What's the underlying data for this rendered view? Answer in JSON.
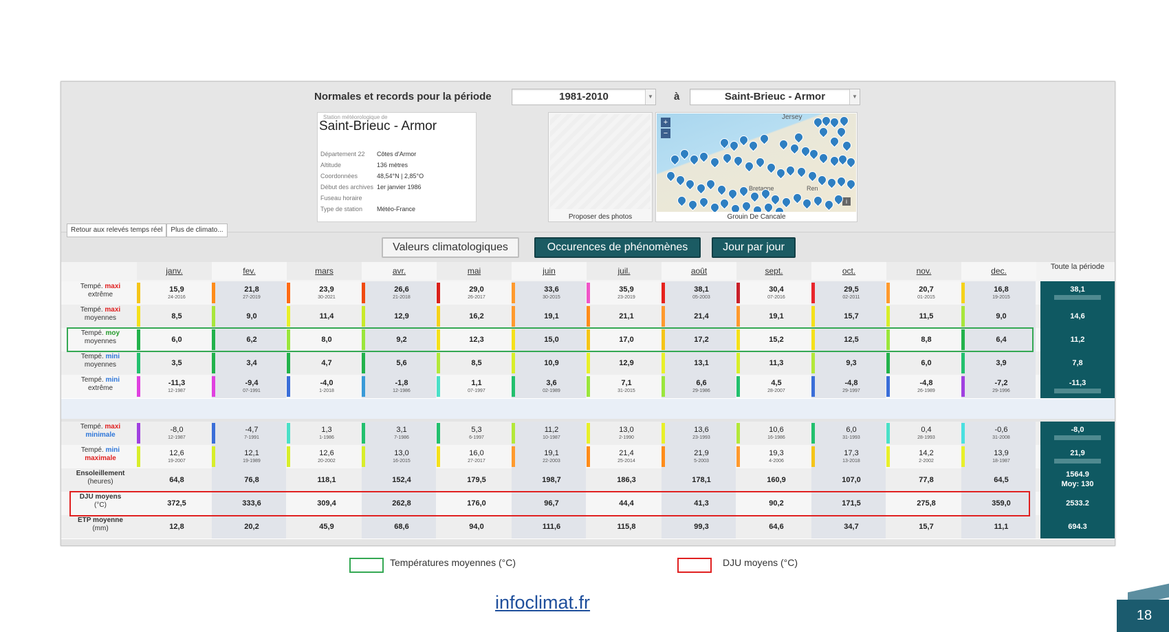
{
  "header": {
    "period_label": "Normales et records pour la période",
    "period_value": "1981-2010",
    "to_label": "à",
    "station_value": "Saint-Brieuc - Armor"
  },
  "station": {
    "small_label": "Station météorologique de",
    "name": "Saint-Brieuc - Armor",
    "fields": [
      {
        "k": "Département 22",
        "v": "Côtes d'Armor"
      },
      {
        "k": "Altitude",
        "v": "136 mètres"
      },
      {
        "k": "Coordonnées",
        "v": "48,54°N | 2,85°O"
      },
      {
        "k": "Début des archives",
        "v": "1er janvier 1986"
      },
      {
        "k": "Fuseau horaire",
        "v": ""
      },
      {
        "k": "Type de station",
        "v": "Météo-France"
      }
    ]
  },
  "photo": {
    "caption": "Proposer des photos"
  },
  "map": {
    "caption": "Grouin De Cancale",
    "zoom_in": "+",
    "zoom_out": "−",
    "label_jersey": "Jersey",
    "label_bretagne": "Bretagne",
    "label_ren": "Ren",
    "pin_label": "i"
  },
  "buttons": {
    "back": "Retour aux relevés temps réel",
    "more": "Plus de climato..."
  },
  "tabs": {
    "t1": "Valeurs climatologiques",
    "t2": "Occurences de phénomènes",
    "t3": "Jour par jour"
  },
  "table": {
    "months": [
      "janv.",
      "fev.",
      "mars",
      "avr.",
      "mai",
      "juin",
      "juil.",
      "août",
      "sept.",
      "oct.",
      "nov.",
      "dec."
    ],
    "total_header": "Toute la période",
    "rows": [
      {
        "label_a": "Tempé. ",
        "label_b": "maxi",
        "label_c": "extrême",
        "color_b": "red",
        "values": [
          "15,9",
          "21,8",
          "23,9",
          "26,6",
          "29,0",
          "33,6",
          "35,9",
          "38,1",
          "30,4",
          "29,5",
          "20,7",
          "16,8"
        ],
        "dates": [
          "24-2016",
          "27-2019",
          "30-2021",
          "21-2018",
          "26-2017",
          "30-2015",
          "23-2019",
          "05-2003",
          "07-2016",
          "02-2011",
          "01-2015",
          "19-2015"
        ],
        "bars": [
          "#f5c518",
          "#ff8c1a",
          "#ff6a13",
          "#f04a10",
          "#d9201a",
          "#ff9a2e",
          "#f055c8",
          "#e6221d",
          "#c8202a",
          "#e8252c",
          "#ff9a2e",
          "#f5d21a"
        ],
        "total": "38,1",
        "bold": true
      },
      {
        "label_a": "Tempé. ",
        "label_b": "maxi",
        "label_c": "moyennes",
        "color_b": "red",
        "values": [
          "8,5",
          "9,0",
          "11,4",
          "12,9",
          "16,2",
          "19,1",
          "21,1",
          "21,4",
          "19,1",
          "15,7",
          "11,5",
          "9,0"
        ],
        "dates": [],
        "bars": [
          "#f5e11a",
          "#a8e63c",
          "#e8f02a",
          "#c9ea2a",
          "#f5d21a",
          "#ff9a2e",
          "#ff8c1a",
          "#ff9a2e",
          "#ff9a2e",
          "#f5e11a",
          "#d8ee2a",
          "#a8e63c"
        ],
        "total": "14,6",
        "bold": true
      },
      {
        "label_a": "Tempé. ",
        "label_b": "moy",
        "label_c": "moyennes",
        "color_b": "green",
        "values": [
          "6,0",
          "6,2",
          "8,0",
          "9,2",
          "12,3",
          "15,0",
          "17,0",
          "17,2",
          "15,2",
          "12,5",
          "8,8",
          "6,4"
        ],
        "dates": [],
        "bars": [
          "#22b24c",
          "#22b24c",
          "#9ae63c",
          "#9ae63c",
          "#f5e11a",
          "#f5e11a",
          "#f5c518",
          "#f5c518",
          "#f5e11a",
          "#f5e11a",
          "#9ae63c",
          "#22b24c"
        ],
        "total": "11,2",
        "bold": true
      },
      {
        "label_a": "Tempé. ",
        "label_b": "mini",
        "label_c": "moyennes",
        "color_b": "blue",
        "values": [
          "3,5",
          "3,4",
          "4,7",
          "5,6",
          "8,5",
          "10,9",
          "12,9",
          "13,1",
          "11,3",
          "9,3",
          "6,0",
          "3,9"
        ],
        "dates": [],
        "bars": [
          "#22c06e",
          "#22b24c",
          "#22b24c",
          "#22b24c",
          "#b3e83a",
          "#d8ee2a",
          "#e8f02a",
          "#e8f02a",
          "#d8ee2a",
          "#b3e83a",
          "#22b24c",
          "#22c06e"
        ],
        "total": "7,8",
        "bold": true
      },
      {
        "label_a": "Tempé. ",
        "label_b": "mini",
        "label_c": "extrême",
        "color_b": "blue",
        "values": [
          "-11,3",
          "-9,4",
          "-4,0",
          "-1,8",
          "1,1",
          "3,6",
          "7,1",
          "6,6",
          "4,5",
          "-4,8",
          "-4,8",
          "-7,2"
        ],
        "dates": [
          "12-1987",
          "07-1991",
          "1-2018",
          "12-1986",
          "07-1997",
          "02-1989",
          "31-2015",
          "29-1986",
          "28-2007",
          "29-1997",
          "26-1989",
          "29-1996"
        ],
        "bars": [
          "#e040e0",
          "#e040e0",
          "#3a6ed8",
          "#3a9ad8",
          "#4ae0c8",
          "#22c06e",
          "#9ae63c",
          "#9ae63c",
          "#22c06e",
          "#3a6ed8",
          "#3a6ed8",
          "#a040e0"
        ],
        "total": "-11,3",
        "bold": true
      },
      {
        "label_a": "Tempé. ",
        "label_b": "maxi",
        "label_c": "minimale",
        "color_b": "red",
        "color_c": "blue",
        "values": [
          "-8,0",
          "-4,7",
          "1,3",
          "3,1",
          "5,3",
          "11,2",
          "13,0",
          "13,6",
          "10,6",
          "6,0",
          "0,4",
          "-0,6"
        ],
        "dates": [
          "12-1987",
          "7-1991",
          "1-1986",
          "7-1986",
          "6-1997",
          "10-1987",
          "2-1990",
          "23-1993",
          "16-1986",
          "31-1993",
          "28-1993",
          "31-2008"
        ],
        "bars": [
          "#a040e0",
          "#3a6ed8",
          "#4ae0c8",
          "#22c06e",
          "#22c06e",
          "#b3e83a",
          "#e8f02a",
          "#e8f02a",
          "#b3e83a",
          "#22c06e",
          "#4ae0c8",
          "#4ae0e0"
        ],
        "total": "-8,0",
        "bold": false
      },
      {
        "label_a": "Tempé. ",
        "label_b": "mini",
        "label_c": "maximale",
        "color_b": "blue",
        "color_c": "red",
        "values": [
          "12,6",
          "12,1",
          "12,6",
          "13,0",
          "16,0",
          "19,1",
          "21,4",
          "21,9",
          "19,3",
          "17,3",
          "14,2",
          "13,9"
        ],
        "dates": [
          "19-2007",
          "19-1989",
          "20-2002",
          "16-2015",
          "27-2017",
          "22-2003",
          "25-2014",
          "5-2003",
          "4-2006",
          "13-2018",
          "2-2002",
          "18-1987"
        ],
        "bars": [
          "#d8ee2a",
          "#d8ee2a",
          "#d8ee2a",
          "#d8ee2a",
          "#f5e11a",
          "#ff9a2e",
          "#ff8c1a",
          "#ff8c1a",
          "#ff9a2e",
          "#f5c518",
          "#e8f02a",
          "#e8f02a"
        ],
        "total": "21,9",
        "bold": false
      },
      {
        "label_a": "Ensoleillement",
        "label_b": "",
        "label_c": "(heures)",
        "color_b": "none",
        "values": [
          "64,8",
          "76,8",
          "118,1",
          "152,4",
          "179,5",
          "198,7",
          "186,3",
          "178,1",
          "160,9",
          "107,0",
          "77,8",
          "64,5"
        ],
        "dates": [],
        "bars": [],
        "total": "1564.9",
        "total2": "Moy: 130",
        "bold": true
      },
      {
        "label_a": "DJU moyens",
        "label_b": "",
        "label_c": "(°C)",
        "color_b": "none",
        "values": [
          "372,5",
          "333,6",
          "309,4",
          "262,8",
          "176,0",
          "96,7",
          "44,4",
          "41,3",
          "90,2",
          "171,5",
          "275,8",
          "359,0"
        ],
        "dates": [],
        "bars": [],
        "total": "2533.2",
        "bold": true
      },
      {
        "label_a": "ETP moyenne",
        "label_b": "",
        "label_c": "(mm)",
        "color_b": "none",
        "values": [
          "12,8",
          "20,2",
          "45,9",
          "68,6",
          "94,0",
          "111,6",
          "115,8",
          "99,3",
          "64,6",
          "34,7",
          "15,7",
          "11,1"
        ],
        "dates": [],
        "bars": [],
        "total": "694.3",
        "bold": true
      }
    ]
  },
  "legend": {
    "green_label": "Températures moyennes (°C)",
    "red_label": "DJU moyens (°C)",
    "green_color": "#34a853",
    "red_color": "#e02020"
  },
  "footer": {
    "source": "infoclimat.fr",
    "page_number": "18"
  }
}
